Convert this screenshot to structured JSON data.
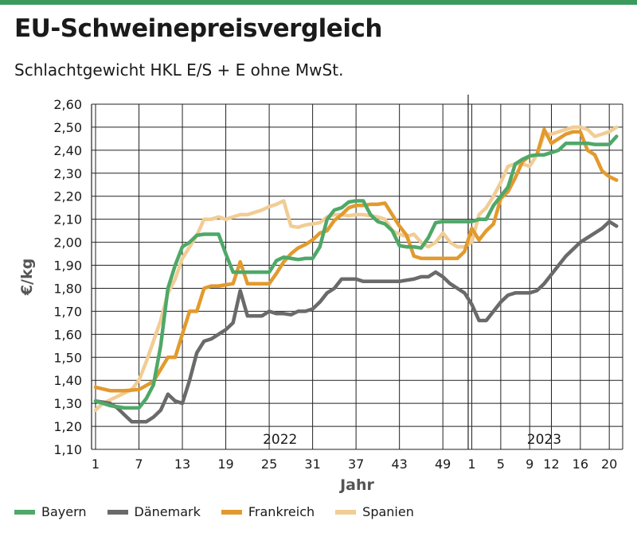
{
  "header": {
    "title": "EU-Schweinepreisvergleich",
    "subtitle": "Schlachtgewicht HKL E/S + E ohne MwSt."
  },
  "colors": {
    "accent_bar": "#3b9b5c",
    "Bayern": "#4fa868",
    "Dänemark": "#6a6a6a",
    "Frankreich": "#e29a2e",
    "Spanien": "#f1cd95"
  },
  "chart_data": {
    "type": "line",
    "ylabel": "€/kg",
    "xlabel": "Jahr",
    "ylim": [
      1.1,
      2.6
    ],
    "yticks": [
      "1,10",
      "1,20",
      "1,30",
      "1,40",
      "1,50",
      "1,60",
      "1,70",
      "1,80",
      "1,90",
      "2,00",
      "2,10",
      "2,20",
      "2,30",
      "2,40",
      "2,50",
      "2,60"
    ],
    "x_groups": [
      {
        "label": "2022",
        "weeks": 52,
        "ticks": [
          "1",
          "7",
          "13",
          "19",
          "25",
          "31",
          "37",
          "43",
          "49"
        ]
      },
      {
        "label": "2023",
        "weeks": 21,
        "ticks": [
          "1",
          "5",
          "9",
          "12",
          "16",
          "20"
        ]
      }
    ],
    "grid": true,
    "legend_position": "bottom",
    "series": [
      {
        "name": "Bayern",
        "x": [
          1,
          3,
          5,
          6,
          7,
          8,
          9,
          10,
          11,
          12,
          13,
          14,
          15,
          16,
          17,
          18,
          19,
          20,
          21,
          23,
          24,
          25,
          26,
          27,
          28,
          29,
          30,
          31,
          32,
          33,
          34,
          35,
          36,
          37,
          38,
          39,
          40,
          41,
          42,
          43,
          44,
          45,
          46,
          47,
          48,
          49,
          50,
          51,
          52,
          53,
          54,
          55,
          56,
          57,
          58,
          59,
          60,
          61,
          62,
          63,
          64,
          65,
          66,
          67,
          68,
          69,
          70,
          71,
          72,
          73
        ],
        "y": [
          1.31,
          1.29,
          1.28,
          1.28,
          1.28,
          1.32,
          1.38,
          1.55,
          1.8,
          1.9,
          1.98,
          2.0,
          2.03,
          2.035,
          2.035,
          2.035,
          1.95,
          1.87,
          1.87,
          1.87,
          1.87,
          1.87,
          1.92,
          1.935,
          1.93,
          1.925,
          1.93,
          1.93,
          1.98,
          2.1,
          2.14,
          2.15,
          2.175,
          2.18,
          2.18,
          2.12,
          2.09,
          2.08,
          2.05,
          1.985,
          1.98,
          1.98,
          1.975,
          2.02,
          2.085,
          2.09,
          2.09,
          2.09,
          2.09,
          2.09,
          2.1,
          2.1,
          2.16,
          2.2,
          2.24,
          2.34,
          2.36,
          2.375,
          2.38,
          2.38,
          2.39,
          2.4,
          2.43,
          2.43,
          2.43,
          2.43,
          2.425,
          2.425,
          2.425,
          2.46
        ]
      },
      {
        "name": "Dänemark",
        "x": [
          1,
          3,
          4,
          5,
          6,
          7,
          8,
          9,
          10,
          11,
          12,
          13,
          14,
          15,
          16,
          17,
          18,
          19,
          20,
          21,
          22,
          23,
          24,
          25,
          26,
          27,
          28,
          29,
          30,
          31,
          32,
          33,
          34,
          35,
          36,
          37,
          38,
          39,
          40,
          41,
          42,
          43,
          44,
          45,
          46,
          47,
          48,
          49,
          50,
          51,
          52,
          53,
          54,
          55,
          56,
          57,
          58,
          59,
          60,
          61,
          62,
          63,
          64,
          65,
          66,
          67,
          68,
          69,
          70,
          71,
          72,
          73
        ],
        "y": [
          1.31,
          1.3,
          1.28,
          1.25,
          1.22,
          1.22,
          1.22,
          1.24,
          1.27,
          1.34,
          1.31,
          1.3,
          1.4,
          1.52,
          1.57,
          1.58,
          1.6,
          1.62,
          1.65,
          1.79,
          1.68,
          1.68,
          1.68,
          1.7,
          1.69,
          1.69,
          1.685,
          1.7,
          1.7,
          1.71,
          1.74,
          1.78,
          1.8,
          1.84,
          1.84,
          1.84,
          1.83,
          1.83,
          1.83,
          1.83,
          1.83,
          1.83,
          1.835,
          1.84,
          1.85,
          1.85,
          1.87,
          1.85,
          1.82,
          1.8,
          1.78,
          1.73,
          1.66,
          1.66,
          1.7,
          1.74,
          1.77,
          1.78,
          1.78,
          1.78,
          1.79,
          1.82,
          1.86,
          1.9,
          1.94,
          1.97,
          2.0,
          2.02,
          2.04,
          2.06,
          2.09,
          2.07
        ]
      },
      {
        "name": "Frankreich",
        "x": [
          1,
          3,
          5,
          7,
          9,
          11,
          12,
          13,
          14,
          15,
          16,
          17,
          18,
          19,
          20,
          21,
          22,
          23,
          24,
          25,
          26,
          27,
          28,
          29,
          30,
          31,
          32,
          33,
          34,
          35,
          36,
          37,
          38,
          39,
          40,
          41,
          42,
          43,
          44,
          45,
          46,
          47,
          48,
          49,
          50,
          51,
          52,
          53,
          54,
          55,
          56,
          57,
          58,
          59,
          60,
          61,
          62,
          63,
          64,
          65,
          66,
          67,
          68,
          69,
          70,
          71,
          72,
          73
        ],
        "y": [
          1.37,
          1.355,
          1.355,
          1.36,
          1.395,
          1.5,
          1.5,
          1.6,
          1.7,
          1.7,
          1.8,
          1.81,
          1.81,
          1.815,
          1.82,
          1.915,
          1.82,
          1.82,
          1.82,
          1.82,
          1.865,
          1.915,
          1.95,
          1.975,
          1.99,
          2.01,
          2.04,
          2.05,
          2.095,
          2.12,
          2.15,
          2.16,
          2.16,
          2.165,
          2.165,
          2.17,
          2.12,
          2.07,
          2.03,
          1.94,
          1.93,
          1.93,
          1.93,
          1.93,
          1.93,
          1.93,
          1.96,
          2.06,
          2.01,
          2.05,
          2.08,
          2.19,
          2.22,
          2.28,
          2.35,
          2.375,
          2.38,
          2.49,
          2.43,
          2.45,
          2.47,
          2.48,
          2.48,
          2.4,
          2.38,
          2.31,
          2.285,
          2.27
        ]
      },
      {
        "name": "Spanien",
        "x": [
          1,
          2,
          4,
          6,
          7,
          8,
          9,
          10,
          11,
          12,
          13,
          14,
          15,
          16,
          17,
          18,
          19,
          20,
          21,
          22,
          23,
          24,
          25,
          26,
          27,
          28,
          29,
          30,
          31,
          32,
          33,
          34,
          35,
          36,
          37,
          38,
          39,
          40,
          41,
          42,
          43,
          44,
          45,
          46,
          47,
          48,
          49,
          50,
          51,
          52,
          53,
          54,
          55,
          56,
          57,
          58,
          59,
          60,
          61,
          62,
          63,
          64,
          65,
          66,
          67,
          68,
          69,
          70,
          71,
          72,
          73
        ],
        "y": [
          1.27,
          1.3,
          1.33,
          1.36,
          1.4,
          1.48,
          1.57,
          1.66,
          1.78,
          1.84,
          1.93,
          1.98,
          2.03,
          2.1,
          2.1,
          2.11,
          2.1,
          2.11,
          2.12,
          2.12,
          2.13,
          2.14,
          2.155,
          2.165,
          2.18,
          2.07,
          2.065,
          2.075,
          2.08,
          2.085,
          2.11,
          2.12,
          2.12,
          2.115,
          2.12,
          2.12,
          2.115,
          2.11,
          2.1,
          2.05,
          2.035,
          2.025,
          2.035,
          2.0,
          1.98,
          2.0,
          2.04,
          2.0,
          1.98,
          1.98,
          2.0,
          2.12,
          2.15,
          2.2,
          2.26,
          2.33,
          2.34,
          2.34,
          2.33,
          2.38,
          2.47,
          2.47,
          2.48,
          2.49,
          2.5,
          2.5,
          2.49,
          2.46,
          2.47,
          2.48,
          2.5
        ]
      }
    ]
  }
}
